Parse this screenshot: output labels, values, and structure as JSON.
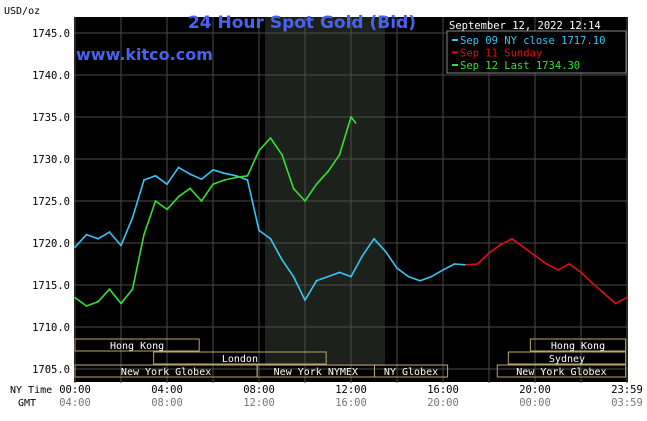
{
  "chart_data": {
    "type": "line",
    "title": "24 Hour Spot Gold (Bid)",
    "ylabel": "USD/oz",
    "date_label": "September 12, 2022 12:14",
    "brand": "www.kitco.com",
    "ylim": [
      1705.0,
      1745.0
    ],
    "y_ticks": [
      "1745.0",
      "1740.0",
      "1735.0",
      "1730.0",
      "1725.0",
      "1720.0",
      "1715.0",
      "1710.0",
      "1705.0"
    ],
    "x_axis": {
      "ny_label": "NY Time",
      "gmt_label": "GMT",
      "ny_ticks": [
        "00:00",
        "04:00",
        "08:00",
        "12:00",
        "16:00",
        "20:00",
        "23:59"
      ],
      "gmt_ticks": [
        "04:00",
        "08:00",
        "12:00",
        "16:00",
        "20:00",
        "00:00",
        "03:59"
      ]
    },
    "legend": {
      "placement": "top-right",
      "entries": [
        {
          "label": "Sep 09 NY close 1717.10",
          "color": "#39c4f6"
        },
        {
          "label": "Sep 11 Sunday",
          "color": "#e01010"
        },
        {
          "label": "Sep 12 Last 1734.30",
          "color": "#34e034"
        }
      ]
    },
    "sessions": [
      {
        "label": "Hong Kong"
      },
      {
        "label": "London"
      },
      {
        "label": "New York Globex"
      },
      {
        "label": "New York NYMEX"
      },
      {
        "label": "NY Globex"
      },
      {
        "label": "Hong Kong"
      },
      {
        "label": "Sydney"
      },
      {
        "label": "New York Globex"
      }
    ],
    "series": [
      {
        "name": "Sep 09 NY close 1717.10",
        "color": "#39c4f6",
        "x": [
          0.0,
          0.5,
          1.0,
          1.5,
          2.0,
          2.5,
          3.0,
          3.5,
          4.0,
          4.5,
          5.0,
          5.5,
          6.0,
          6.5,
          7.0,
          7.5,
          8.0,
          8.5,
          9.0,
          9.5,
          10.0,
          10.5,
          11.0,
          11.5,
          12.0,
          12.5,
          13.0,
          13.5,
          14.0,
          14.5,
          15.0,
          15.5,
          16.0,
          16.5,
          17.0
        ],
        "y": [
          1719.5,
          1721.0,
          1720.5,
          1721.3,
          1719.7,
          1723.0,
          1727.5,
          1728.0,
          1727.0,
          1729.0,
          1728.2,
          1727.6,
          1728.7,
          1728.3,
          1728.0,
          1727.5,
          1721.5,
          1720.5,
          1718.0,
          1716.0,
          1713.2,
          1715.5,
          1716.0,
          1716.5,
          1716.0,
          1718.5,
          1720.5,
          1719.0,
          1717.0,
          1716.0,
          1715.5,
          1716.0,
          1716.8,
          1717.5,
          1717.4
        ]
      },
      {
        "name": "Sep 11 Sunday",
        "color": "#e01010",
        "x": [
          17.0,
          17.5,
          18.0,
          18.5,
          19.0,
          19.5,
          20.0,
          20.5,
          21.0,
          21.5,
          22.0,
          22.5,
          23.0,
          23.5,
          23.99
        ],
        "y": [
          1717.4,
          1717.5,
          1718.8,
          1719.8,
          1720.5,
          1719.5,
          1718.5,
          1717.5,
          1716.8,
          1717.5,
          1716.5,
          1715.2,
          1714.0,
          1712.8,
          1713.5
        ]
      },
      {
        "name": "Sep 12 Last 1734.30",
        "color": "#34e034",
        "x": [
          0.0,
          0.5,
          1.0,
          1.5,
          2.0,
          2.5,
          3.0,
          3.5,
          4.0,
          4.5,
          5.0,
          5.5,
          6.0,
          6.5,
          7.0,
          7.5,
          8.0,
          8.5,
          9.0,
          9.5,
          10.0,
          10.5,
          11.0,
          11.5,
          12.0,
          12.2
        ],
        "y": [
          1713.5,
          1712.5,
          1713.0,
          1714.5,
          1712.8,
          1714.5,
          1721.0,
          1725.0,
          1724.0,
          1725.5,
          1726.5,
          1725.0,
          1727.0,
          1727.5,
          1727.8,
          1728.0,
          1731.0,
          1732.5,
          1730.5,
          1726.5,
          1725.0,
          1727.0,
          1728.5,
          1730.5,
          1735.0,
          1734.3
        ]
      }
    ]
  }
}
